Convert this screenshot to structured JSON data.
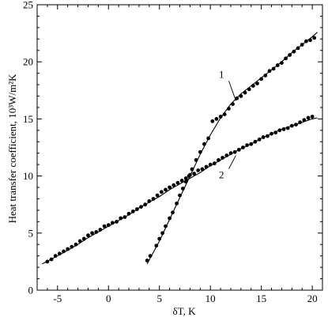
{
  "chart_data": {
    "type": "scatter",
    "xlabel": "δT, K",
    "ylabel": "Heat transfer coefficient, 10³W/m²K",
    "xlim": [
      -7,
      21
    ],
    "ylim": [
      0,
      25
    ],
    "xticks": [
      -5,
      0,
      5,
      10,
      15,
      20
    ],
    "yticks": [
      0,
      5,
      10,
      15,
      20,
      25
    ],
    "grid": false,
    "series": [
      {
        "name": "1",
        "x": [
          3.8,
          4.1,
          4.7,
          5.0,
          5.3,
          5.6,
          6.0,
          6.3,
          6.7,
          7.0,
          7.3,
          7.6,
          7.9,
          8.2,
          8.6,
          9.0,
          9.4,
          9.8,
          10.2,
          10.6,
          11.0,
          11.4,
          11.8,
          12.2,
          12.6,
          13.0,
          13.4,
          13.8,
          14.2,
          14.6,
          15.0,
          15.4,
          15.8,
          16.2,
          16.6,
          17.0,
          17.4,
          17.8,
          18.2,
          18.6,
          19.0,
          19.4,
          19.8,
          20.2
        ],
        "y": [
          2.6,
          3.0,
          3.9,
          4.5,
          5.0,
          5.6,
          6.3,
          6.8,
          7.6,
          8.3,
          8.9,
          9.5,
          10.0,
          10.6,
          11.4,
          12.1,
          12.8,
          13.3,
          14.8,
          15.0,
          15.2,
          15.4,
          15.9,
          16.3,
          16.8,
          17.0,
          17.3,
          17.6,
          17.9,
          18.1,
          18.5,
          18.8,
          19.2,
          19.4,
          19.7,
          19.9,
          20.3,
          20.6,
          20.9,
          21.2,
          21.5,
          21.8,
          21.9,
          22.1
        ],
        "curve_x": [
          3.8,
          5,
          6,
          7,
          8,
          9,
          10,
          11,
          12,
          13,
          14,
          15,
          16,
          17,
          18,
          19,
          20,
          20.5
        ],
        "curve_y": [
          2.3,
          4.3,
          6.2,
          8.1,
          10.0,
          11.9,
          13.6,
          15.1,
          16.3,
          17.2,
          17.9,
          18.6,
          19.3,
          20.0,
          20.8,
          21.5,
          22.2,
          22.6
        ]
      },
      {
        "name": "2",
        "x": [
          -6.0,
          -5.6,
          -5.2,
          -4.8,
          -4.4,
          -4.0,
          -3.6,
          -3.2,
          -2.8,
          -2.4,
          -2.0,
          -1.6,
          -1.2,
          -0.8,
          -0.4,
          0.0,
          0.4,
          0.8,
          1.2,
          1.6,
          2.0,
          2.4,
          2.8,
          3.2,
          3.6,
          4.0,
          4.4,
          4.8,
          5.2,
          5.6,
          6.0,
          6.4,
          6.8,
          7.2,
          7.6,
          8.0,
          8.4,
          8.8,
          9.2,
          9.6,
          10.0,
          10.4,
          10.8,
          11.2,
          11.6,
          12.0,
          12.4,
          12.8,
          13.2,
          13.6,
          14.0,
          14.4,
          14.8,
          15.2,
          15.6,
          16.0,
          16.4,
          16.8,
          17.2,
          17.6,
          18.0,
          18.4,
          18.8,
          19.2,
          19.6,
          20.0
        ],
        "y": [
          2.5,
          2.7,
          3.0,
          3.2,
          3.4,
          3.6,
          3.8,
          4.0,
          4.3,
          4.5,
          4.8,
          5.0,
          5.1,
          5.3,
          5.6,
          5.7,
          5.9,
          6.0,
          6.3,
          6.4,
          6.7,
          6.9,
          7.1,
          7.3,
          7.5,
          7.8,
          8.0,
          8.3,
          8.6,
          8.8,
          9.0,
          9.2,
          9.4,
          9.6,
          9.8,
          10.1,
          10.2,
          10.5,
          10.6,
          10.8,
          11.0,
          11.1,
          11.4,
          11.6,
          11.8,
          12.0,
          12.1,
          12.3,
          12.5,
          12.7,
          12.8,
          13.0,
          13.2,
          13.4,
          13.5,
          13.7,
          13.8,
          14.0,
          14.1,
          14.2,
          14.4,
          14.5,
          14.7,
          14.9,
          15.1,
          15.2
        ],
        "curve_x": [
          -6.5,
          -5,
          -4,
          -3,
          -2,
          -1,
          0,
          1,
          2,
          3,
          4,
          5,
          6,
          7,
          8,
          9,
          10,
          11,
          12,
          13,
          14,
          15,
          16,
          17,
          18,
          19,
          20,
          20.5
        ],
        "curve_y": [
          2.3,
          3.0,
          3.5,
          4.0,
          4.6,
          5.1,
          5.6,
          6.1,
          6.6,
          7.2,
          7.7,
          8.2,
          8.8,
          9.3,
          9.8,
          10.3,
          10.9,
          11.4,
          11.9,
          12.4,
          12.8,
          13.3,
          13.7,
          14.1,
          14.4,
          14.7,
          15.0,
          15.1
        ]
      }
    ],
    "annotations": [
      {
        "text": "1",
        "series": "1",
        "label_x": 11.5,
        "label_y": 18.6,
        "point_x": 12.5,
        "point_y": 16.6
      },
      {
        "text": "2",
        "series": "2",
        "label_x": 11.5,
        "label_y": 9.8,
        "point_x": 12.5,
        "point_y": 11.8
      }
    ]
  }
}
